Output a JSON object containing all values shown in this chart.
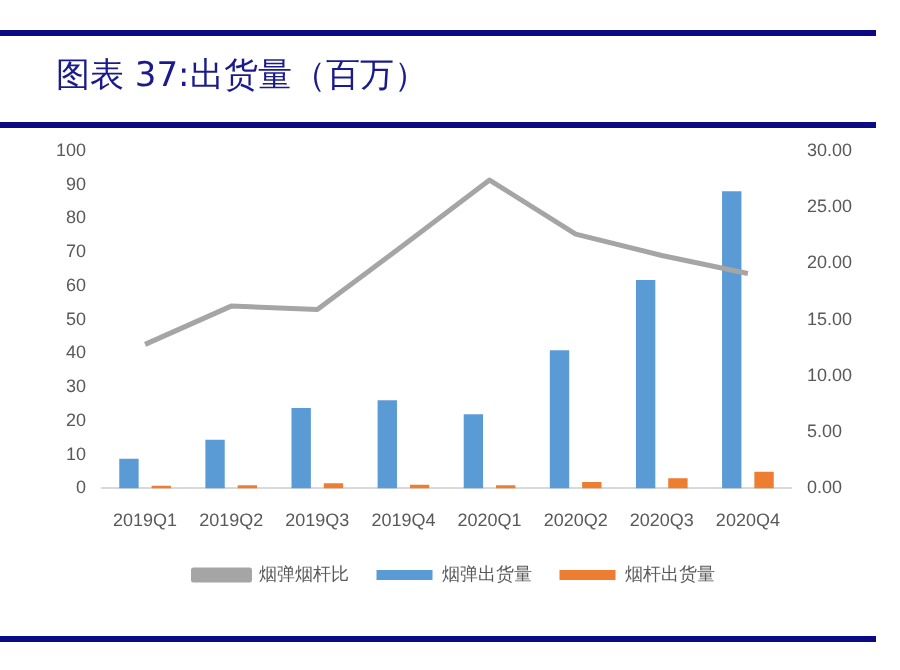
{
  "chart_data": {
    "type": "bar",
    "title": "图表 37:出货量（百万）",
    "categories": [
      "2019Q1",
      "2019Q2",
      "2019Q3",
      "2019Q4",
      "2020Q1",
      "2020Q2",
      "2020Q3",
      "2020Q4"
    ],
    "series": [
      {
        "name": "烟弹出货量",
        "color": "#5b9bd5",
        "values": [
          8.8,
          14.4,
          23.8,
          26.1,
          22.0,
          40.9,
          61.7,
          88.0
        ]
      },
      {
        "name": "烟杆出货量",
        "color": "#ed7d31",
        "values": [
          0.8,
          0.9,
          1.5,
          1.1,
          0.9,
          1.9,
          3.0,
          4.9
        ]
      },
      {
        "name": "烟弹烟杆比",
        "type": "line",
        "axis": "y2",
        "color": "#a5a5a5",
        "values": [
          12.8,
          16.2,
          15.9,
          21.6,
          27.4,
          22.6,
          20.7,
          19.1
        ]
      }
    ],
    "ylim": [
      0,
      100
    ],
    "yticks": [
      0,
      10,
      20,
      30,
      40,
      50,
      60,
      70,
      80,
      90,
      100
    ],
    "y2lim": [
      0,
      30
    ],
    "y2ticks": [
      {
        "value": 0,
        "label": "0.00"
      },
      {
        "value": 5,
        "label": "5.00"
      },
      {
        "value": 10,
        "label": "10.00"
      },
      {
        "value": 15,
        "label": "15.00"
      },
      {
        "value": 20,
        "label": "20.00"
      },
      {
        "value": 25,
        "label": "25.00"
      },
      {
        "value": 30,
        "label": "30.00"
      }
    ],
    "grid": false,
    "legend": "bottom",
    "marker": "none"
  }
}
